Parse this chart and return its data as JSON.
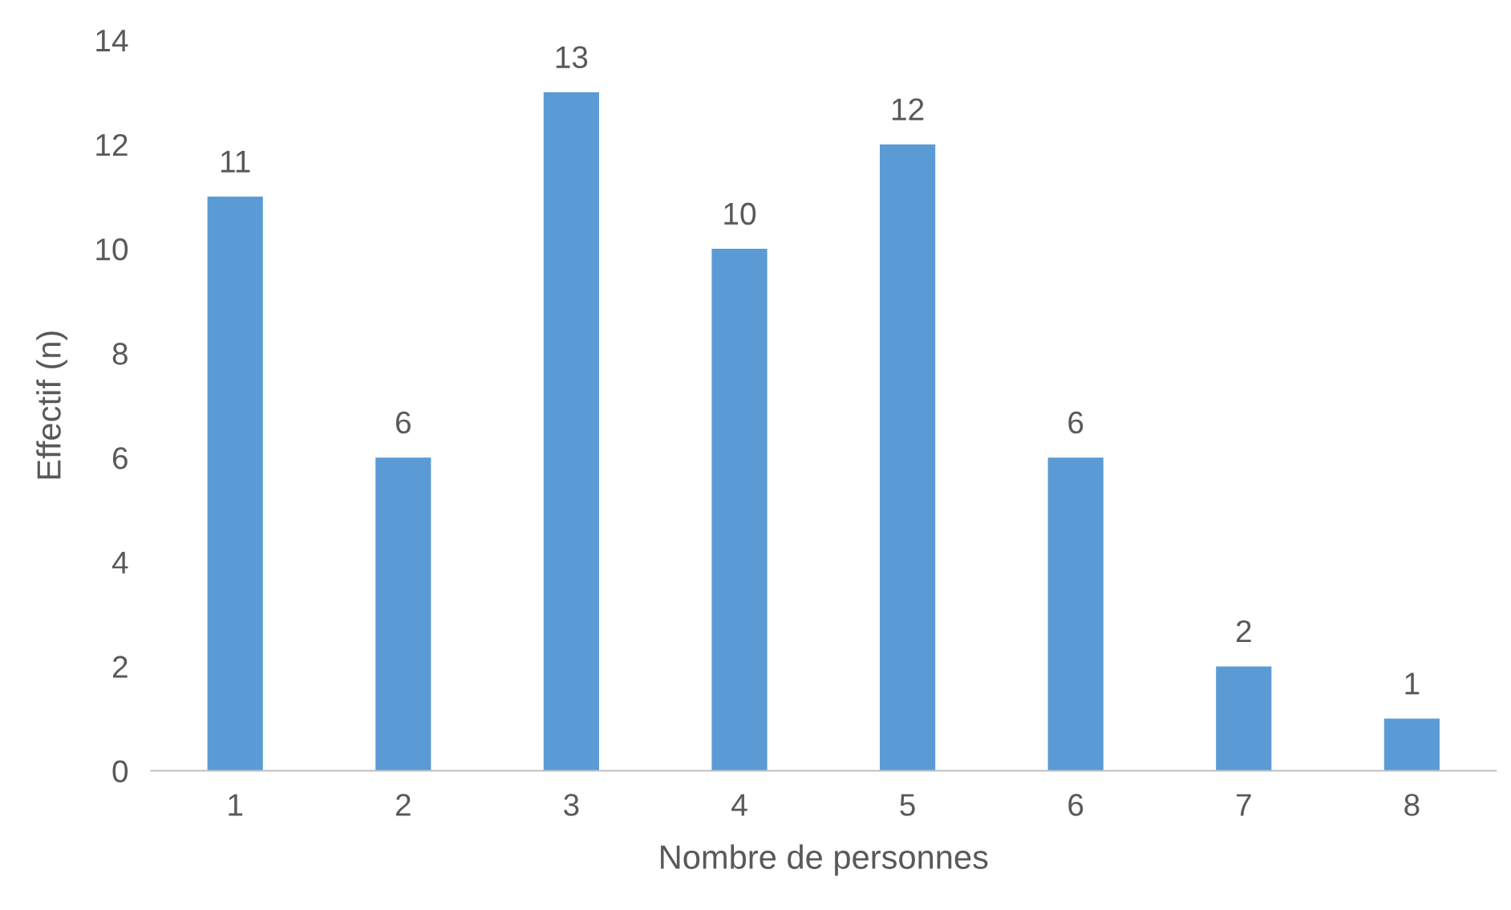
{
  "chart_data": {
    "type": "bar",
    "xlabel": "Nombre de personnes",
    "ylabel": "Effectif (n)",
    "categories": [
      "1",
      "2",
      "3",
      "4",
      "5",
      "6",
      "7",
      "8"
    ],
    "values": [
      11,
      6,
      13,
      10,
      12,
      6,
      2,
      1
    ],
    "color": "#5b9bd5",
    "ylim": [
      0,
      14
    ],
    "yticks": [
      0,
      2,
      4,
      6,
      8,
      10,
      12,
      14
    ],
    "data_labels": true
  }
}
